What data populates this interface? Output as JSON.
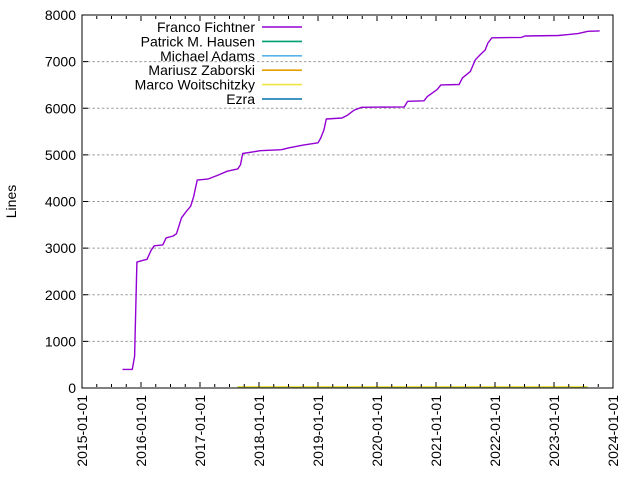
{
  "chart_data": {
    "type": "line",
    "title": "",
    "xlabel": "",
    "ylabel": "Lines",
    "x_axis": {
      "tick_labels": [
        "2015-01-01",
        "2016-01-01",
        "2017-01-01",
        "2018-01-01",
        "2019-01-01",
        "2020-01-01",
        "2021-01-01",
        "2022-01-01",
        "2023-01-01",
        "2024-01-01"
      ],
      "range": [
        "2015-01-01",
        "2024-01-01"
      ],
      "minor_ticks_per_year": 4,
      "label_rotation_deg": -90
    },
    "y_axis": {
      "tick_labels": [
        "0",
        "1000",
        "2000",
        "3000",
        "4000",
        "5000",
        "6000",
        "7000",
        "8000"
      ],
      "range": [
        0,
        8000
      ],
      "tick_interval": 1000
    },
    "grid": {
      "horizontal": true,
      "vertical": false,
      "style": "dashed",
      "color": "#9c9c9c"
    },
    "legend": {
      "position": "top-center",
      "swatch": "line"
    },
    "series": [
      {
        "name": "Franco Fichtner",
        "color": "#9400d3",
        "points": [
          [
            "2015-09-08",
            400
          ],
          [
            "2015-11-08",
            400
          ],
          [
            "2015-11-16",
            560
          ],
          [
            "2015-11-22",
            680
          ],
          [
            "2015-12-06",
            2700
          ],
          [
            "2016-01-05",
            2730
          ],
          [
            "2016-02-08",
            2760
          ],
          [
            "2016-03-04",
            2960
          ],
          [
            "2016-03-22",
            3050
          ],
          [
            "2016-05-14",
            3070
          ],
          [
            "2016-06-04",
            3220
          ],
          [
            "2016-07-18",
            3260
          ],
          [
            "2016-08-08",
            3310
          ],
          [
            "2016-09-08",
            3650
          ],
          [
            "2016-10-08",
            3790
          ],
          [
            "2016-11-04",
            3900
          ],
          [
            "2016-11-22",
            4100
          ],
          [
            "2016-12-14",
            4460
          ],
          [
            "2017-02-18",
            4480
          ],
          [
            "2017-04-18",
            4560
          ],
          [
            "2017-06-18",
            4650
          ],
          [
            "2017-08-22",
            4700
          ],
          [
            "2017-09-08",
            4790
          ],
          [
            "2017-09-22",
            5030
          ],
          [
            "2017-11-18",
            5060
          ],
          [
            "2018-01-08",
            5090
          ],
          [
            "2018-05-18",
            5110
          ],
          [
            "2018-07-01",
            5150
          ],
          [
            "2018-10-01",
            5210
          ],
          [
            "2019-01-01",
            5260
          ],
          [
            "2019-01-18",
            5360
          ],
          [
            "2019-02-08",
            5540
          ],
          [
            "2019-02-22",
            5770
          ],
          [
            "2019-05-28",
            5790
          ],
          [
            "2019-07-01",
            5850
          ],
          [
            "2019-08-12",
            5960
          ],
          [
            "2019-09-28",
            6020
          ],
          [
            "2020-06-18",
            6030
          ],
          [
            "2020-07-08",
            6150
          ],
          [
            "2020-10-18",
            6160
          ],
          [
            "2020-11-08",
            6250
          ],
          [
            "2021-01-08",
            6400
          ],
          [
            "2021-02-01",
            6500
          ],
          [
            "2021-05-22",
            6510
          ],
          [
            "2021-06-12",
            6650
          ],
          [
            "2021-08-01",
            6790
          ],
          [
            "2021-09-01",
            7040
          ],
          [
            "2021-10-01",
            7150
          ],
          [
            "2021-11-01",
            7250
          ],
          [
            "2021-11-18",
            7400
          ],
          [
            "2021-12-12",
            7510
          ],
          [
            "2022-06-12",
            7520
          ],
          [
            "2022-07-04",
            7550
          ],
          [
            "2023-01-28",
            7560
          ],
          [
            "2023-03-28",
            7580
          ],
          [
            "2023-05-28",
            7600
          ],
          [
            "2023-07-28",
            7650
          ],
          [
            "2023-10-10",
            7660
          ]
        ]
      },
      {
        "name": "Patrick M. Hausen",
        "color": "#009e73",
        "points": [
          [
            "2017-08-22",
            30
          ],
          [
            "2023-07-23",
            30
          ]
        ]
      },
      {
        "name": "Michael Adams",
        "color": "#56b4e9",
        "points": [
          [
            "2017-08-22",
            30
          ],
          [
            "2023-07-23",
            30
          ]
        ]
      },
      {
        "name": "Mariusz Zaborski",
        "color": "#e69f00",
        "points": [
          [
            "2017-08-22",
            30
          ],
          [
            "2023-07-23",
            30
          ]
        ]
      },
      {
        "name": "Marco Woitschitzky",
        "color": "#f0e442",
        "points": [
          [
            "2017-08-22",
            30
          ],
          [
            "2023-07-23",
            30
          ]
        ]
      },
      {
        "name": "Ezra",
        "color": "#0072b2",
        "points": [
          [
            "2017-08-22",
            30
          ],
          [
            "2023-07-23",
            30
          ]
        ]
      }
    ]
  }
}
